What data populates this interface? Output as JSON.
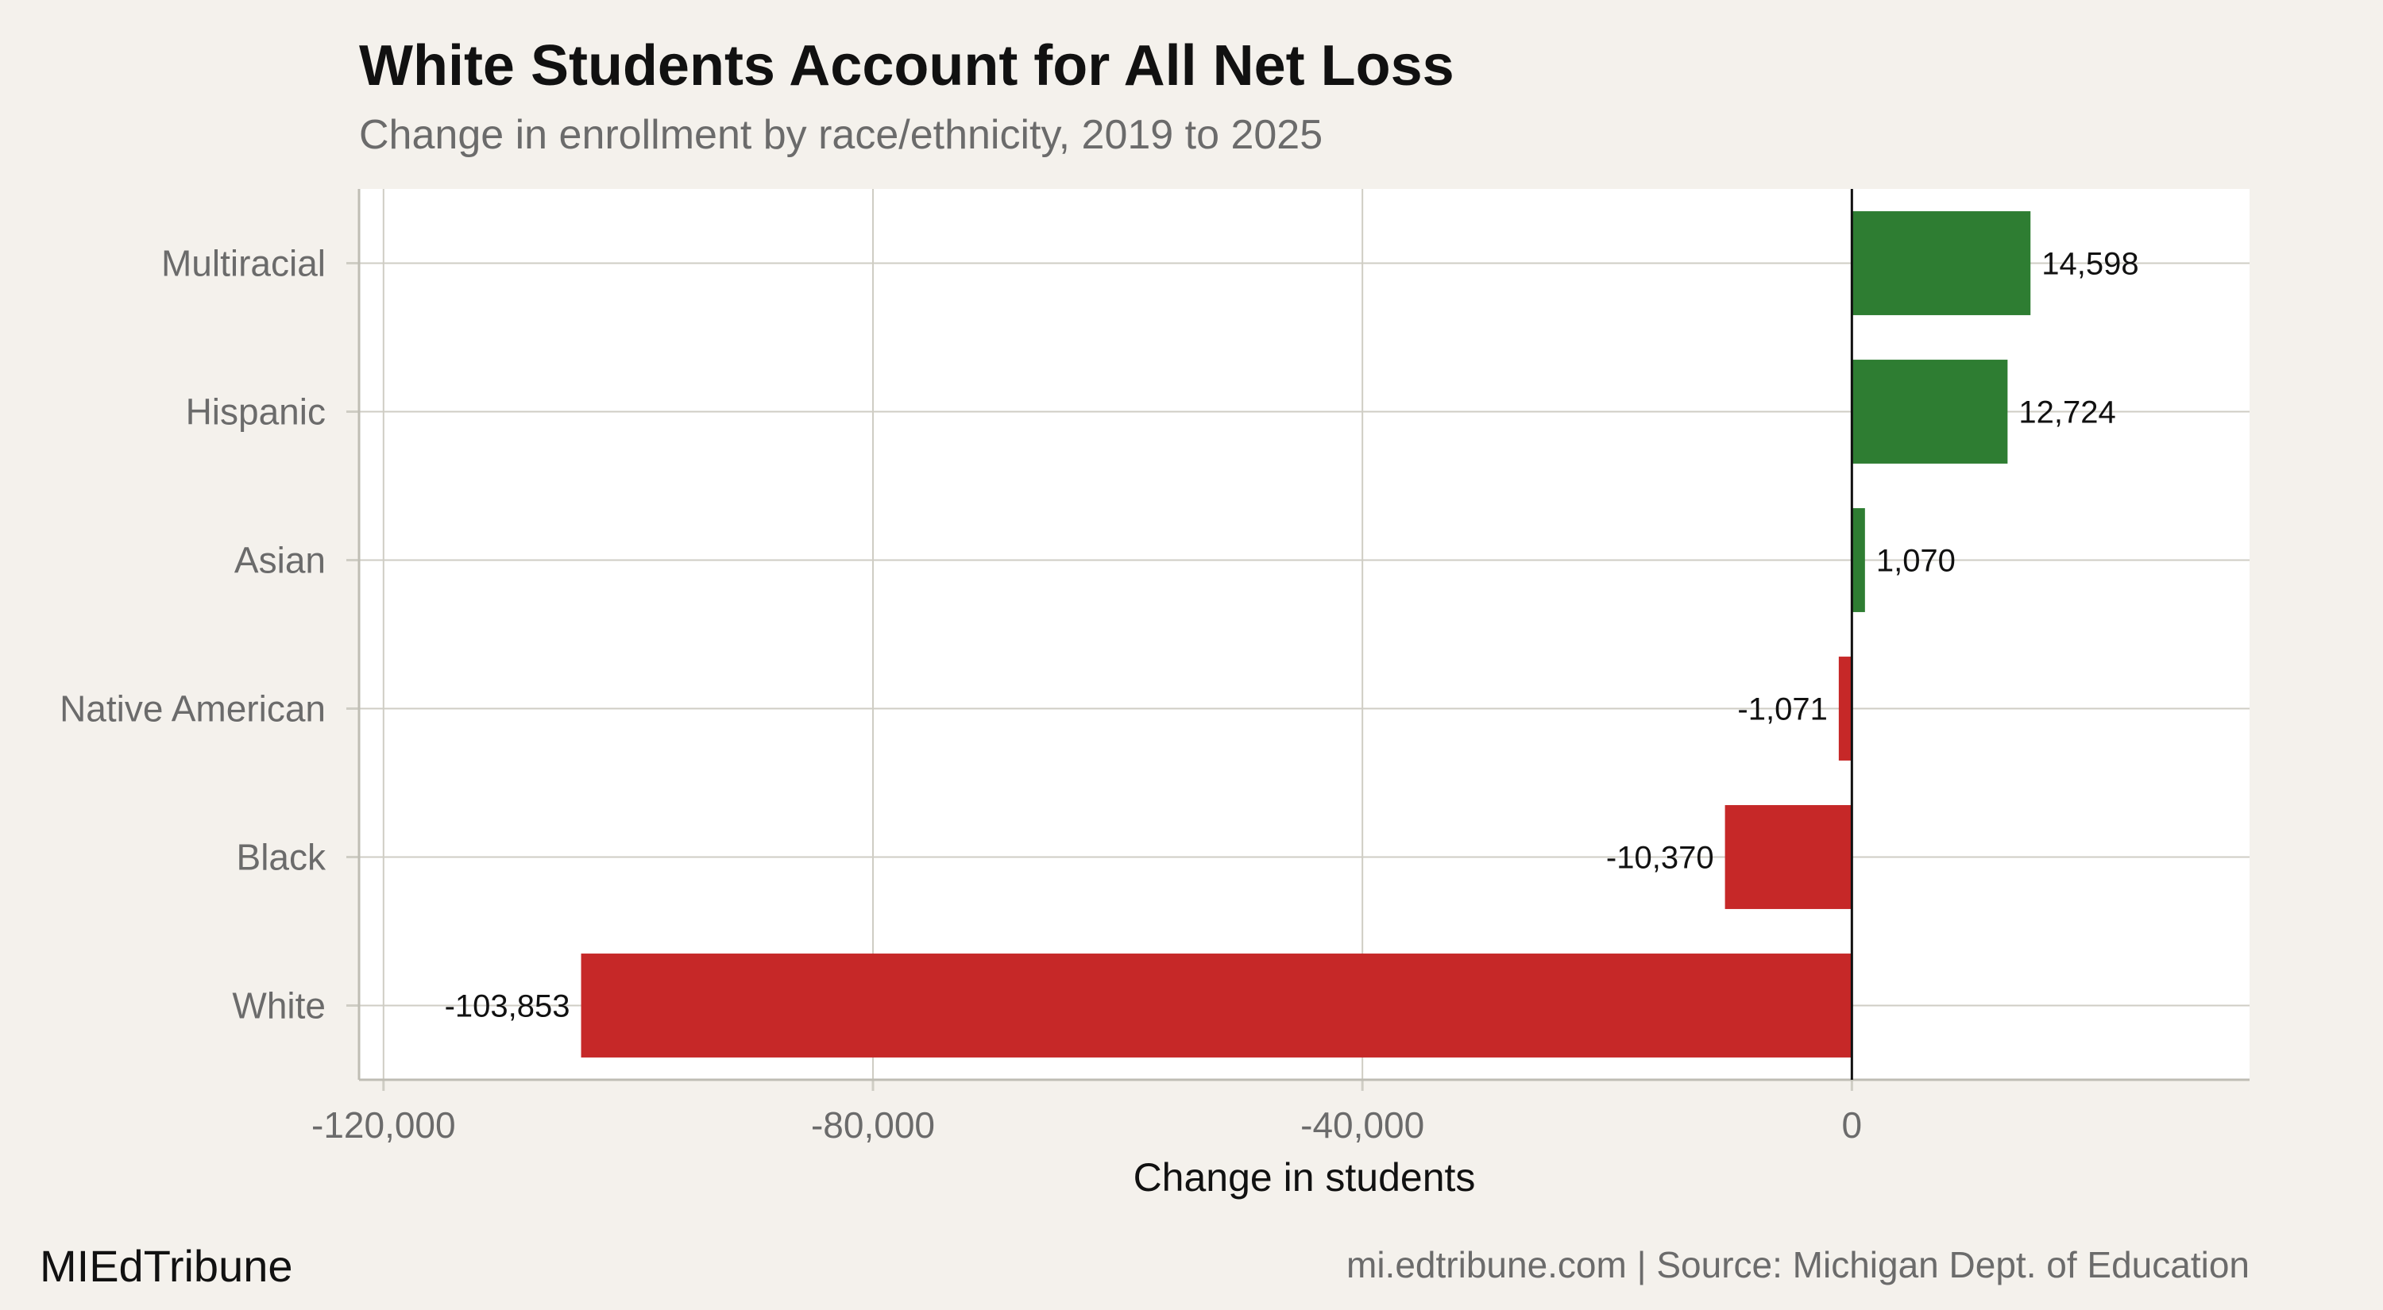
{
  "header": {
    "title": "White Students Account for All Net Loss",
    "subtitle": "Change in enrollment by race/ethnicity, 2019 to 2025"
  },
  "footer": {
    "brand": "MIEdTribune",
    "source": "mi.edtribune.com | Source: Michigan Dept. of Education"
  },
  "colors": {
    "positive": "#2e7d32",
    "negative": "#c62828",
    "panel": "#ffffff",
    "background": "#f4f1ec",
    "grid": "#cfcdc4"
  },
  "chart_data": {
    "type": "bar",
    "orientation": "horizontal",
    "categories": [
      "Multiracial",
      "Hispanic",
      "Asian",
      "Native American",
      "Black",
      "White"
    ],
    "values": [
      14598,
      12724,
      1070,
      -1071,
      -10370,
      -103853
    ],
    "data_labels": [
      "14,598",
      "12,724",
      "1,070",
      "-1,071",
      "-10,370",
      "-103,853"
    ],
    "xlabel": "Change in students",
    "xlim": [
      -122000,
      32500
    ],
    "xticks": [
      -120000,
      -80000,
      -40000,
      0
    ],
    "xtick_labels": [
      "-120,000",
      "-80,000",
      "-40,000",
      "0"
    ],
    "grid": true,
    "legend": "none"
  }
}
